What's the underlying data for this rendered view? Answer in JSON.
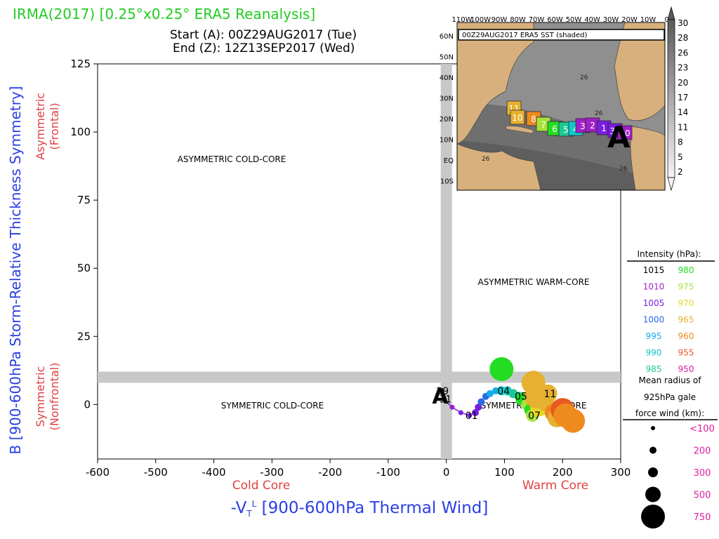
{
  "header": {
    "title": "IRMA(2017) [0.25°x0.25° ERA5 Reanalysis]",
    "start": "Start (A): 00Z29AUG2017 (Tue)",
    "end": "End (Z): 12Z13SEP2017 (Wed)"
  },
  "chart_data": {
    "type": "scatter",
    "xlabel": "-VT L [900-600hPa Thermal Wind]",
    "xlabel_main": "-V",
    "xlabel_sub": "T",
    "xlabel_sup": "L",
    "xlabel_rest": " [900-600hPa Thermal Wind]",
    "ylabel": "B [900-600hPa Storm-Relative Thickness Symmetry]",
    "xlim": [
      -600,
      300
    ],
    "ylim": [
      -20,
      125
    ],
    "xticks": [
      -600,
      -500,
      -400,
      -300,
      -200,
      -100,
      0,
      100,
      200,
      300
    ],
    "yticks": [
      0,
      25,
      50,
      75,
      100,
      125
    ],
    "x_annotations": {
      "left": "Cold Core",
      "right": "Warm Core"
    },
    "y_annotations": {
      "upper": [
        "Asymmetric",
        "(Frontal)"
      ],
      "lower": [
        "Symmetric",
        "(Nonfrontal)"
      ]
    },
    "quadrants": {
      "upper_left": "ASYMMETRIC COLD-CORE",
      "upper_right": "ASYMMETRIC WARM-CORE",
      "lower_left": "SYMMETRIC COLD-CORE",
      "lower_right": "SYMMETRIC WARM-CORE"
    },
    "threshold_bands": {
      "x": 0,
      "y": 10
    },
    "start_marker": {
      "label": "A",
      "x": -10,
      "y": 5
    },
    "track": [
      {
        "x": -10,
        "y": 5,
        "p": 1010,
        "r": 100,
        "label": "29"
      },
      {
        "x": -5,
        "y": 2,
        "p": 1010,
        "r": 100,
        "label": "31"
      },
      {
        "x": 10,
        "y": -1,
        "p": 1010,
        "r": 100
      },
      {
        "x": 25,
        "y": -3,
        "p": 1005,
        "r": 100
      },
      {
        "x": 40,
        "y": -4,
        "p": 1005,
        "r": 100,
        "label": "01"
      },
      {
        "x": 50,
        "y": -3,
        "p": 1005,
        "r": 150
      },
      {
        "x": 55,
        "y": -1,
        "p": 1005,
        "r": 150
      },
      {
        "x": 60,
        "y": 1,
        "p": 1000,
        "r": 150
      },
      {
        "x": 68,
        "y": 3,
        "p": 1000,
        "r": 150
      },
      {
        "x": 75,
        "y": 4,
        "p": 995,
        "r": 150
      },
      {
        "x": 85,
        "y": 5,
        "p": 995,
        "r": 150
      },
      {
        "x": 95,
        "y": 5,
        "p": 990,
        "r": 200,
        "label": "04"
      },
      {
        "x": 105,
        "y": 5,
        "p": 990,
        "r": 200
      },
      {
        "x": 115,
        "y": 4,
        "p": 985,
        "r": 200
      },
      {
        "x": 125,
        "y": 3,
        "p": 985,
        "r": 200,
        "label": "05"
      },
      {
        "x": 130,
        "y": 2,
        "p": 980,
        "r": 300
      },
      {
        "x": 140,
        "y": 0,
        "p": 975,
        "r": 300
      },
      {
        "x": 145,
        "y": -2,
        "p": 980,
        "r": 300
      },
      {
        "x": 148,
        "y": -4,
        "p": 975,
        "r": 300,
        "label": "07"
      },
      {
        "x": 160,
        "y": -1,
        "p": 970,
        "r": 500
      },
      {
        "x": 170,
        "y": 1,
        "p": 965,
        "r": 500
      },
      {
        "x": 175,
        "y": 4,
        "p": 965,
        "r": 500,
        "label": "11"
      },
      {
        "x": 185,
        "y": -3,
        "p": 960,
        "r": 500
      },
      {
        "x": 190,
        "y": -5,
        "p": 965,
        "r": 500
      },
      {
        "x": 200,
        "y": -2,
        "p": 955,
        "r": 750
      },
      {
        "x": 205,
        "y": -4,
        "p": 960,
        "r": 750
      },
      {
        "x": 218,
        "y": -6,
        "p": 960,
        "r": 750
      },
      {
        "x": 155,
        "y": 3,
        "p": 965,
        "r": 750
      },
      {
        "x": 150,
        "y": 8,
        "p": 965,
        "r": 750
      },
      {
        "x": 95,
        "y": 13,
        "p": 980,
        "r": 750
      }
    ],
    "legend": {
      "title": "Intensity (hPa):",
      "entries": [
        {
          "label": "1015",
          "color": "#000000"
        },
        {
          "label": "980",
          "color": "#22dd22"
        },
        {
          "label": "1010",
          "color": "#a020c8"
        },
        {
          "label": "975",
          "color": "#a8e23a"
        },
        {
          "label": "1005",
          "color": "#7a1ee0"
        },
        {
          "label": "970",
          "color": "#e6d62a"
        },
        {
          "label": "1000",
          "color": "#2a6ae6"
        },
        {
          "label": "965",
          "color": "#e6b030"
        },
        {
          "label": "995",
          "color": "#12aaee"
        },
        {
          "label": "960",
          "color": "#ee8a1e"
        },
        {
          "label": "990",
          "color": "#12c8c8"
        },
        {
          "label": "955",
          "color": "#e85a22"
        },
        {
          "label": "985",
          "color": "#1ec896"
        },
        {
          "label": "950",
          "color": "#e01ea0"
        }
      ],
      "size_title": [
        "Mean radius of",
        "925hPa gale",
        "force wind (km):"
      ],
      "sizes": [
        {
          "label": "<100",
          "r": 3
        },
        {
          "label": "200",
          "r": 5
        },
        {
          "label": "300",
          "r": 7
        },
        {
          "label": "500",
          "r": 11
        },
        {
          "label": "750",
          "r": 17
        }
      ]
    }
  },
  "inset_map": {
    "caption": "00Z29AUG2017 ERA5 SST (shaded)",
    "lon_labels": [
      "110W",
      "100W",
      "90W",
      "80W",
      "70W",
      "60W",
      "50W",
      "40W",
      "30W",
      "20W",
      "10W",
      "0"
    ],
    "lat_labels": [
      "60N",
      "50N",
      "40N",
      "30N",
      "20N",
      "10N",
      "EQ",
      "10S"
    ],
    "sst_contour_labels": [
      "26",
      "26",
      "26",
      "26"
    ],
    "colorbar_labels": [
      "30",
      "28",
      "26",
      "23",
      "20",
      "17",
      "14",
      "11",
      "8",
      "5",
      "2"
    ],
    "track_days": [
      {
        "label": "11",
        "color": "#e6b030"
      },
      {
        "label": "10",
        "color": "#e6b030"
      },
      {
        "label": "8",
        "color": "#ee8a1e"
      },
      {
        "label": "7",
        "color": "#a8e23a"
      },
      {
        "label": "6",
        "color": "#22dd22"
      },
      {
        "label": "5",
        "color": "#1ec896"
      },
      {
        "label": "4",
        "color": "#12c8c8"
      },
      {
        "label": "3",
        "color": "#a020c8"
      },
      {
        "label": "2",
        "color": "#a020c8"
      },
      {
        "label": "1",
        "color": "#7a1ee0"
      },
      {
        "label": "31",
        "color": "#7a1ee0"
      },
      {
        "label": "30",
        "color": "#a020c8"
      }
    ],
    "start_label": "A"
  }
}
